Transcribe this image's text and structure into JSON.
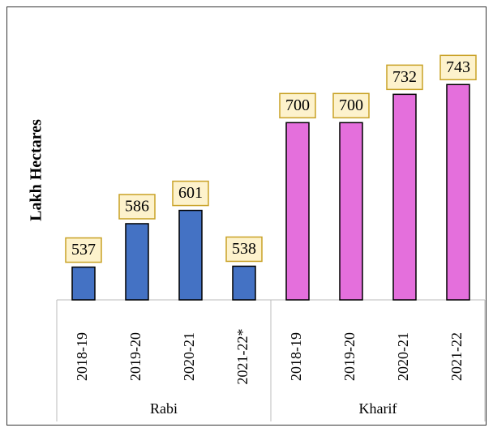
{
  "chart_data": {
    "type": "bar",
    "y_label": "Lakh Hectares",
    "groups": [
      {
        "name": "Rabi",
        "color": "#4472c4",
        "categories": [
          "2018-19",
          "2019-20",
          "2020-21",
          "2021-22*"
        ],
        "values": [
          537,
          586,
          601,
          538
        ]
      },
      {
        "name": "Kharif",
        "color": "#e46fdc",
        "categories": [
          "2018-19",
          "2019-20",
          "2020-21",
          "2021-22"
        ],
        "values": [
          700,
          700,
          732,
          743
        ]
      }
    ],
    "ylim": [
      500,
      800
    ]
  }
}
